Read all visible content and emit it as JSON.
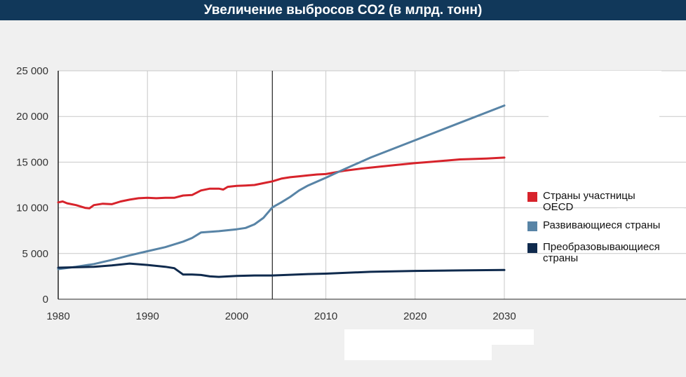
{
  "title": "Увеличение выбросов CO2 (в млрд. тонн)",
  "colors": {
    "title_bg": "#11385a",
    "oecd": "#d7232b",
    "developing": "#5884a6",
    "transition": "#0f2a4d",
    "grid": "#c8c8c8"
  },
  "chart_data": {
    "type": "line",
    "title": "Увеличение выбросов CO2 (в млрд. тонн)",
    "xlabel": "",
    "ylabel": "",
    "xlim": [
      1980,
      2030
    ],
    "ylim": [
      0,
      25000
    ],
    "x_ticks": [
      1980,
      1990,
      2000,
      2010,
      2020,
      2030
    ],
    "x_tick_labels": [
      "1980",
      "1990",
      "2000",
      "2010",
      "2020",
      "2030"
    ],
    "y_ticks": [
      0,
      5000,
      10000,
      15000,
      20000,
      25000
    ],
    "y_tick_labels": [
      "0",
      "5 000",
      "10 000",
      "15 000",
      "20 000",
      "25 000"
    ],
    "vertical_marker_x": 2004,
    "grid": true,
    "legend_position": "right",
    "series": [
      {
        "name": "Страны участницы OECD",
        "color": "#d7232b",
        "points": [
          [
            1980,
            10600
          ],
          [
            1980.5,
            10700
          ],
          [
            1981,
            10500
          ],
          [
            1982,
            10300
          ],
          [
            1983,
            10000
          ],
          [
            1983.5,
            9950
          ],
          [
            1984,
            10300
          ],
          [
            1985,
            10450
          ],
          [
            1986,
            10400
          ],
          [
            1987,
            10700
          ],
          [
            1988,
            10900
          ],
          [
            1989,
            11050
          ],
          [
            1990,
            11100
          ],
          [
            1991,
            11050
          ],
          [
            1992,
            11100
          ],
          [
            1993,
            11100
          ],
          [
            1994,
            11350
          ],
          [
            1995,
            11400
          ],
          [
            1996,
            11900
          ],
          [
            1997,
            12100
          ],
          [
            1998,
            12100
          ],
          [
            1998.5,
            12000
          ],
          [
            1999,
            12300
          ],
          [
            2000,
            12400
          ],
          [
            2001,
            12450
          ],
          [
            2002,
            12500
          ],
          [
            2003,
            12700
          ],
          [
            2004,
            12900
          ],
          [
            2005,
            13200
          ],
          [
            2006,
            13350
          ],
          [
            2007,
            13450
          ],
          [
            2008,
            13550
          ],
          [
            2009,
            13650
          ],
          [
            2010,
            13700
          ],
          [
            2012,
            14050
          ],
          [
            2014,
            14300
          ],
          [
            2016,
            14500
          ],
          [
            2018,
            14700
          ],
          [
            2020,
            14900
          ],
          [
            2022,
            15050
          ],
          [
            2025,
            15300
          ],
          [
            2028,
            15400
          ],
          [
            2030,
            15500
          ]
        ]
      },
      {
        "name": "Развивающиеся страны",
        "color": "#5884a6",
        "points": [
          [
            1980,
            3300
          ],
          [
            1982,
            3550
          ],
          [
            1984,
            3850
          ],
          [
            1986,
            4300
          ],
          [
            1988,
            4800
          ],
          [
            1990,
            5250
          ],
          [
            1992,
            5700
          ],
          [
            1994,
            6300
          ],
          [
            1995,
            6700
          ],
          [
            1996,
            7300
          ],
          [
            1998,
            7450
          ],
          [
            2000,
            7650
          ],
          [
            2001,
            7800
          ],
          [
            2002,
            8200
          ],
          [
            2003,
            8900
          ],
          [
            2004,
            10050
          ],
          [
            2005,
            10600
          ],
          [
            2006,
            11200
          ],
          [
            2007,
            11900
          ],
          [
            2008,
            12450
          ],
          [
            2010,
            13300
          ],
          [
            2012,
            14200
          ],
          [
            2015,
            15500
          ],
          [
            2020,
            17400
          ],
          [
            2025,
            19300
          ],
          [
            2030,
            21200
          ]
        ]
      },
      {
        "name": "Преобразовывающиеся страны",
        "color": "#0f2a4d",
        "points": [
          [
            1980,
            3450
          ],
          [
            1982,
            3500
          ],
          [
            1984,
            3550
          ],
          [
            1986,
            3700
          ],
          [
            1988,
            3900
          ],
          [
            1990,
            3750
          ],
          [
            1992,
            3550
          ],
          [
            1993,
            3400
          ],
          [
            1994,
            2700
          ],
          [
            1995,
            2700
          ],
          [
            1996,
            2650
          ],
          [
            1997,
            2500
          ],
          [
            1998,
            2450
          ],
          [
            2000,
            2550
          ],
          [
            2002,
            2600
          ],
          [
            2004,
            2600
          ],
          [
            2008,
            2750
          ],
          [
            2010,
            2800
          ],
          [
            2015,
            3000
          ],
          [
            2020,
            3100
          ],
          [
            2025,
            3150
          ],
          [
            2030,
            3200
          ]
        ]
      }
    ]
  },
  "legend": [
    {
      "label": "Страны участницы OECD",
      "color": "#d7232b"
    },
    {
      "label": "Развивающиеся страны",
      "color": "#5884a6"
    },
    {
      "label": "Преобразовывающиеся страны",
      "color": "#0f2a4d"
    }
  ]
}
